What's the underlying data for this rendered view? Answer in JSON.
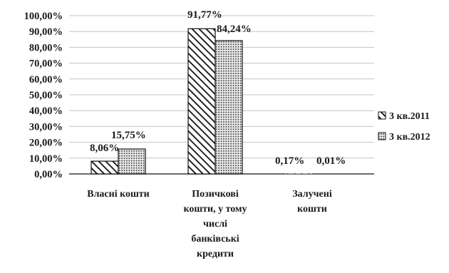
{
  "chart_data": {
    "type": "bar",
    "categories": [
      [
        "Власні кошти"
      ],
      [
        "Позичкові",
        "кошти, у тому",
        "числі",
        "банківські",
        "кредити"
      ],
      [
        "Залучені",
        "кошти"
      ]
    ],
    "series": [
      {
        "name": "3 кв.2011",
        "values": [
          8.06,
          91.77,
          0.17
        ],
        "labels": [
          "8,06%",
          "91,77%",
          "0,17%"
        ],
        "pattern": "diagonal-hatch"
      },
      {
        "name": "3 кв.2012",
        "values": [
          15.75,
          84.24,
          0.01
        ],
        "labels": [
          "15,75%",
          "84,24%",
          "0,01%"
        ],
        "pattern": "dotted"
      }
    ],
    "ylim": [
      0,
      100
    ],
    "yticks": [
      "0,00%",
      "10,00%",
      "20,00%",
      "30,00%",
      "40,00%",
      "50,00%",
      "60,00%",
      "70,00%",
      "80,00%",
      "90,00%",
      "100,00%"
    ],
    "grid": true,
    "legend_position": "right",
    "title": "",
    "xlabel": "",
    "ylabel": ""
  }
}
